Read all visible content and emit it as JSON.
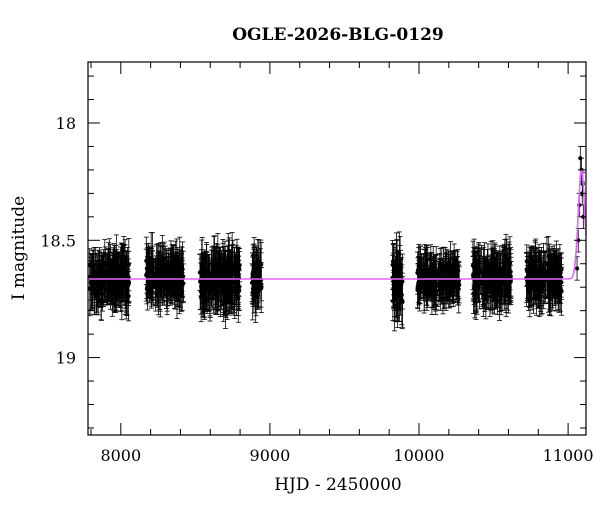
{
  "chart_data": {
    "type": "scatter",
    "title": "OGLE-2026-BLG-0129",
    "xlabel": "HJD - 2450000",
    "ylabel": "I magnitude",
    "xlim": [
      7780,
      11120
    ],
    "ylim": [
      19.33,
      17.74
    ],
    "y_inverted": true,
    "grid": false,
    "x_ticks": [
      8000,
      9000,
      10000,
      11000
    ],
    "x_tick_labels": [
      "8000",
      "9000",
      "10000",
      "11000"
    ],
    "x_minor_step": 200,
    "y_ticks": [
      18,
      18.5,
      19
    ],
    "y_tick_labels": [
      "18",
      "18.5",
      "19"
    ],
    "y_minor_step": 0.1,
    "marker_color": "#000000",
    "model_color": "#e066ff",
    "baseline_mag": 18.665,
    "data_blocks": [
      {
        "x_start": 7790,
        "x_end": 8060,
        "mean_mag": 18.665,
        "scatter": 0.05,
        "err": 0.09
      },
      {
        "x_start": 8170,
        "x_end": 8420,
        "mean_mag": 18.655,
        "scatter": 0.045,
        "err": 0.09
      },
      {
        "x_start": 8530,
        "x_end": 8800,
        "mean_mag": 18.665,
        "scatter": 0.055,
        "err": 0.1
      },
      {
        "x_start": 8880,
        "x_end": 8945,
        "mean_mag": 18.665,
        "scatter": 0.05,
        "err": 0.09
      },
      {
        "x_start": 9820,
        "x_end": 9890,
        "mean_mag": 18.67,
        "scatter": 0.07,
        "err": 0.1
      },
      {
        "x_start": 9990,
        "x_end": 10270,
        "mean_mag": 18.665,
        "scatter": 0.04,
        "err": 0.08
      },
      {
        "x_start": 10360,
        "x_end": 10620,
        "mean_mag": 18.665,
        "scatter": 0.05,
        "err": 0.09
      },
      {
        "x_start": 10720,
        "x_end": 10960,
        "mean_mag": 18.665,
        "scatter": 0.045,
        "err": 0.09
      }
    ],
    "peak_points": [
      {
        "x": 11060,
        "y": 18.62
      },
      {
        "x": 11068,
        "y": 18.5
      },
      {
        "x": 11075,
        "y": 18.35
      },
      {
        "x": 11082,
        "y": 18.15
      },
      {
        "x": 11090,
        "y": 18.2
      },
      {
        "x": 11095,
        "y": 18.3
      },
      {
        "x": 11098,
        "y": 18.26
      },
      {
        "x": 11102,
        "y": 18.4
      }
    ],
    "model": {
      "baseline": 18.665,
      "peak_x": 11090,
      "peak_mag": 18.2,
      "width": 22
    }
  }
}
